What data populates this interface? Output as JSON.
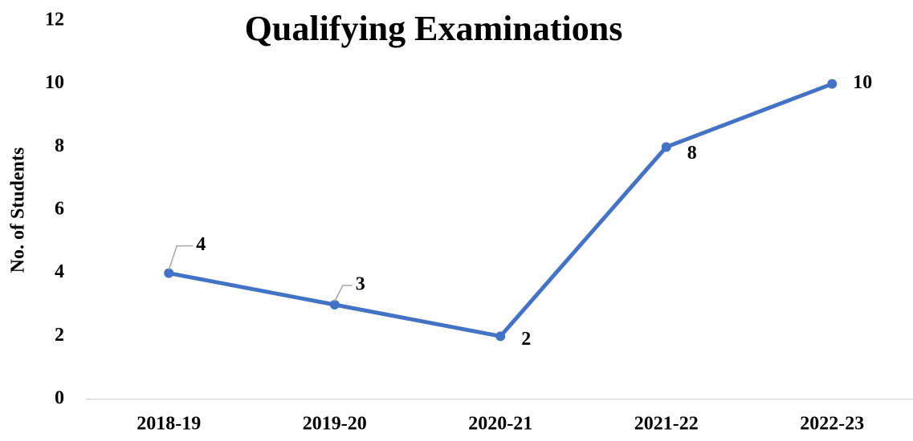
{
  "chart_data": {
    "type": "line",
    "title": "Qualifying Examinations",
    "y_label": "No. of Students",
    "categories": [
      "2018-19",
      "2019-20",
      "2020-21",
      "2021-22",
      "2022-23"
    ],
    "series": [
      {
        "name": "No. of Students",
        "color": "#4472c4",
        "values": [
          4,
          3,
          2,
          8,
          10
        ]
      }
    ],
    "ylim": [
      0,
      12
    ],
    "yticks": [
      0,
      2,
      4,
      6,
      8,
      10,
      12
    ],
    "grid": false
  }
}
